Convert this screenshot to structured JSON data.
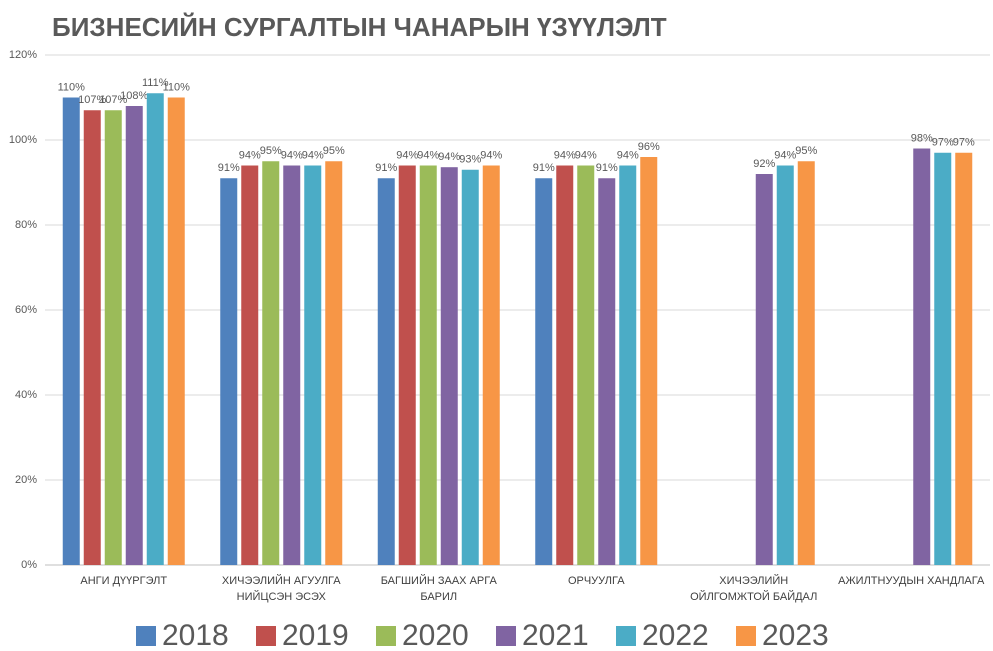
{
  "chart_data": {
    "type": "bar",
    "title": "БИЗНЕСИЙН СУРГАЛТЫН ЧАНАРЫН ҮЗҮҮЛЭЛТ",
    "categories": [
      "АНГИ ДҮҮРГЭЛТ",
      "ХИЧЭЭЛИЙН АГУУЛГА НИЙЦСЭН ЭСЭХ",
      "БАГШИЙН ЗААХ АРГА БАРИЛ",
      "ОРЧУУЛГА",
      "ХИЧЭЭЛИЙН ОЙЛГОМЖТОЙ БАЙДАЛ",
      "АЖИЛТНУУДЫН ХАНДЛАГА"
    ],
    "series": [
      {
        "name": "2018",
        "color": "#4f81bd",
        "values": [
          110,
          91,
          91,
          91,
          null,
          null
        ],
        "value_labels": [
          "110%",
          "91%",
          "91%",
          "91%",
          null,
          null
        ]
      },
      {
        "name": "2019",
        "color": "#c0504d",
        "values": [
          107,
          94,
          94,
          94,
          null,
          null
        ],
        "value_labels": [
          "107%",
          "94%",
          "94%",
          "94%",
          null,
          null
        ]
      },
      {
        "name": "2020",
        "color": "#9bbb59",
        "values": [
          107,
          95,
          94,
          94,
          null,
          null
        ],
        "value_labels": [
          "107%",
          "95%",
          "94%",
          "94%",
          null,
          null
        ]
      },
      {
        "name": "2021",
        "color": "#8064a2",
        "values": [
          108,
          94,
          93.6,
          91,
          92,
          98
        ],
        "value_labels": [
          "108%",
          "94%",
          "94%",
          "91%",
          "92%",
          "98%"
        ]
      },
      {
        "name": "2022",
        "color": "#4bacc6",
        "values": [
          111,
          94,
          93,
          94,
          94,
          97
        ],
        "value_labels": [
          "111%",
          "94%",
          "93%",
          "94%",
          "94%",
          "97%"
        ]
      },
      {
        "name": "2023",
        "color": "#f79646",
        "values": [
          110,
          95,
          94,
          96,
          95,
          97
        ],
        "value_labels": [
          "110%",
          "95%",
          "94%",
          "96%",
          "95%",
          "97%"
        ]
      }
    ],
    "ylim": [
      0,
      120
    ],
    "yticks": [
      {
        "value": 0,
        "label": "0%"
      },
      {
        "value": 20,
        "label": "20%"
      },
      {
        "value": 40,
        "label": "40%"
      },
      {
        "value": 60,
        "label": "60%"
      },
      {
        "value": 80,
        "label": "80%"
      },
      {
        "value": 100,
        "label": "100%"
      },
      {
        "value": 120,
        "label": "120%"
      }
    ],
    "grid": true,
    "legend": "bottom"
  }
}
